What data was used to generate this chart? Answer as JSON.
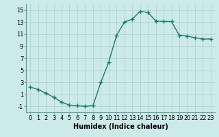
{
  "x": [
    0,
    1,
    2,
    3,
    4,
    5,
    6,
    7,
    8,
    9,
    10,
    11,
    12,
    13,
    14,
    15,
    16,
    17,
    18,
    19,
    20,
    21,
    22,
    23
  ],
  "y": [
    2.2,
    1.8,
    1.2,
    0.5,
    -0.3,
    -0.8,
    -0.9,
    -1.0,
    -0.9,
    3.0,
    6.3,
    10.8,
    13.0,
    13.5,
    14.8,
    14.6,
    13.2,
    13.1,
    13.1,
    10.8,
    10.7,
    10.4,
    10.2,
    10.2
  ],
  "line_color": "#1a7a6e",
  "marker": "+",
  "marker_size": 4,
  "bg_color": "#cceae7",
  "grid_color": "#add4d0",
  "xlabel": "Humidex (Indice chaleur)",
  "yticks": [
    -1,
    1,
    3,
    5,
    7,
    9,
    11,
    13,
    15
  ],
  "xticks": [
    0,
    1,
    2,
    3,
    4,
    5,
    6,
    7,
    8,
    9,
    10,
    11,
    12,
    13,
    14,
    15,
    16,
    17,
    18,
    19,
    20,
    21,
    22,
    23
  ],
  "ylim": [
    -2.0,
    16.0
  ],
  "xlim": [
    -0.5,
    23.5
  ],
  "xlabel_fontsize": 7,
  "tick_fontsize": 6,
  "line_width": 1.0
}
